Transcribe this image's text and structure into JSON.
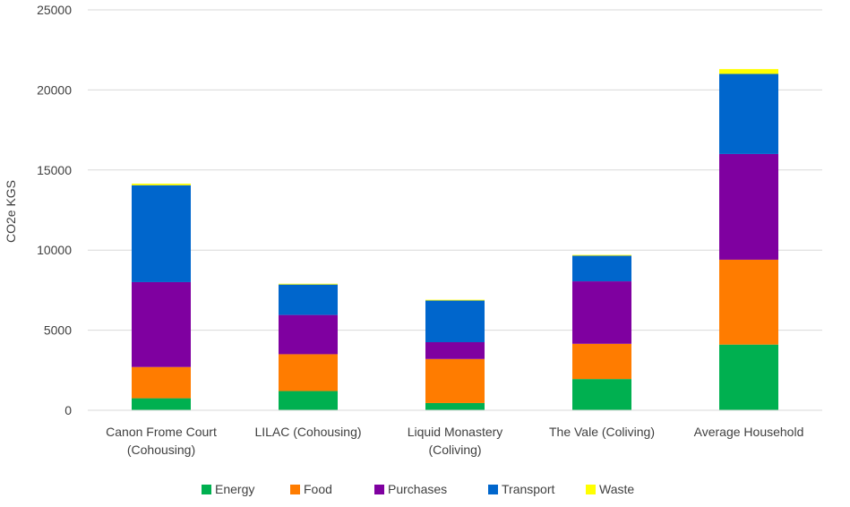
{
  "chart_data": {
    "type": "bar",
    "stacked": true,
    "title": "",
    "xlabel": "",
    "ylabel": "CO2e KGS",
    "ylim": [
      0,
      25000
    ],
    "yticks": [
      "0",
      "5000",
      "10000",
      "15000",
      "20000",
      "25000"
    ],
    "grid": true,
    "legend_position": "bottom",
    "categories": [
      [
        "Canon Frome Court",
        "(Cohousing)"
      ],
      [
        "LILAC (Cohousing)"
      ],
      [
        "Liquid Monastery",
        "(Coliving)"
      ],
      [
        "The Vale (Coliving)"
      ],
      [
        "Average Household"
      ]
    ],
    "series": [
      {
        "name": "Energy",
        "color": "#00b050",
        "values": [
          750,
          1200,
          450,
          1950,
          4100
        ]
      },
      {
        "name": "Food",
        "color": "#ff7c00",
        "values": [
          1950,
          2300,
          2750,
          2200,
          5300
        ]
      },
      {
        "name": "Purchases",
        "color": "#7f00a0",
        "values": [
          5300,
          2450,
          1050,
          3900,
          6600
        ]
      },
      {
        "name": "Transport",
        "color": "#0066cc",
        "values": [
          6050,
          1900,
          2600,
          1600,
          5000
        ]
      },
      {
        "name": "Waste",
        "color": "#ffff00",
        "values": [
          100,
          50,
          50,
          50,
          300
        ]
      }
    ]
  }
}
